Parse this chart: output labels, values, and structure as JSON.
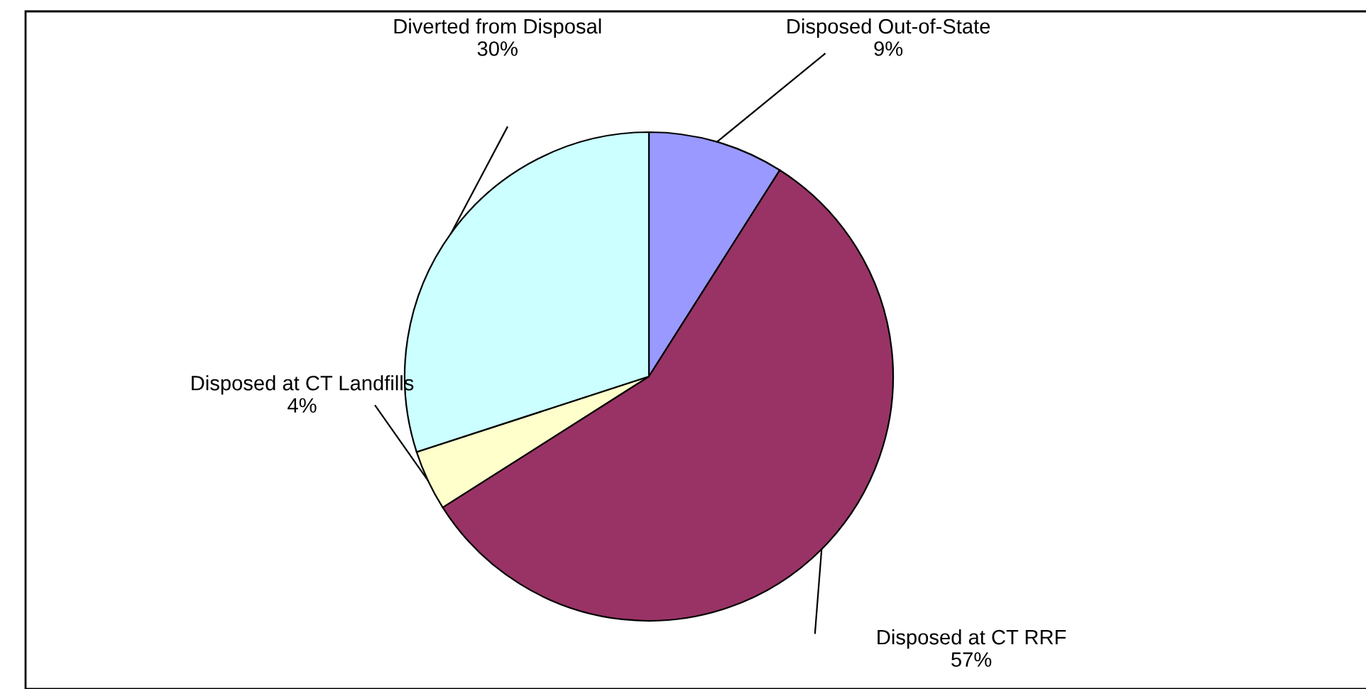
{
  "chart_data": {
    "type": "pie",
    "categories": [
      "Disposed Out-of-State",
      "Disposed at CT RRF",
      "Disposed at CT Landfills",
      "Diverted from Disposal"
    ],
    "values": [
      9,
      57,
      4,
      30
    ],
    "colors": [
      "#9999ff",
      "#993366",
      "#ffffcc",
      "#ccffff"
    ],
    "value_labels": [
      "9%",
      "57%",
      "4%",
      "30%"
    ]
  }
}
